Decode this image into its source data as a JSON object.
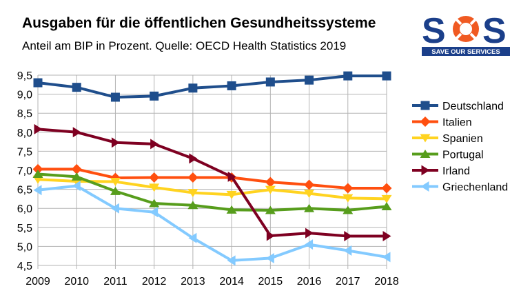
{
  "header": {
    "title": "Ausgaben für die öffentlichen Gesundheitssysteme",
    "subtitle": "Anteil am BIP in Prozent. Quelle: OECD Health Statistics 2019"
  },
  "logo": {
    "letters": [
      "S",
      "S"
    ],
    "ring_icon": "lifebuoy-icon",
    "tagline": "SAVE OUR SERVICES",
    "colors": {
      "navy": "#1b3f8a",
      "orange": "#f05a22"
    }
  },
  "chart_data": {
    "type": "line",
    "x": [
      2009,
      2010,
      2011,
      2012,
      2013,
      2014,
      2015,
      2016,
      2017,
      2018
    ],
    "ylim": [
      4.5,
      9.5
    ],
    "yticks": [
      "9,5",
      "9,0",
      "8,5",
      "8,0",
      "7,5",
      "7,0",
      "6,5",
      "6,0",
      "5,5",
      "5,0",
      "4,5"
    ],
    "ytick_values": [
      9.5,
      9.0,
      8.5,
      8.0,
      7.5,
      7.0,
      6.5,
      6.0,
      5.5,
      5.0,
      4.5
    ],
    "grid": true,
    "legend_position": "right",
    "series": [
      {
        "name": "Deutschland",
        "color": "#1f4e8c",
        "marker": "square",
        "values": [
          9.3,
          9.18,
          8.92,
          8.95,
          9.16,
          9.22,
          9.32,
          9.37,
          9.48,
          9.48
        ]
      },
      {
        "name": "Italien",
        "color": "#ff4f0f",
        "marker": "diamond",
        "values": [
          7.03,
          7.03,
          6.8,
          6.81,
          6.81,
          6.81,
          6.69,
          6.62,
          6.53,
          6.53
        ]
      },
      {
        "name": "Spanien",
        "color": "#ffd320",
        "marker": "triangle-down",
        "values": [
          6.76,
          6.71,
          6.7,
          6.55,
          6.41,
          6.36,
          6.49,
          6.39,
          6.27,
          6.25
        ]
      },
      {
        "name": "Portugal",
        "color": "#579d1c",
        "marker": "triangle-up",
        "values": [
          6.9,
          6.83,
          6.45,
          6.13,
          6.08,
          5.96,
          5.95,
          6.0,
          5.95,
          6.05
        ]
      },
      {
        "name": "Irland",
        "color": "#7e0021",
        "marker": "triangle-right",
        "values": [
          8.08,
          8.0,
          7.73,
          7.69,
          7.31,
          6.83,
          5.28,
          5.35,
          5.27,
          5.27
        ]
      },
      {
        "name": "Griechenland",
        "color": "#83caff",
        "marker": "triangle-left",
        "values": [
          6.48,
          6.59,
          6.0,
          5.9,
          5.22,
          4.63,
          4.69,
          5.05,
          4.89,
          4.72
        ]
      }
    ]
  }
}
